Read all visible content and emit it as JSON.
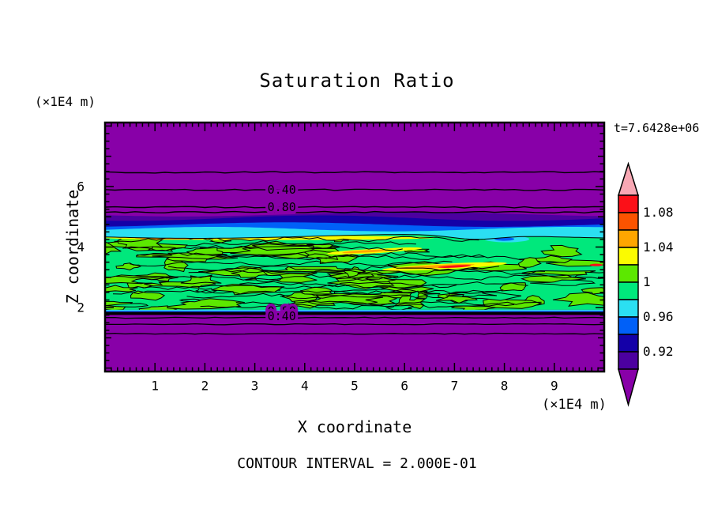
{
  "chart_data": {
    "type": "contour",
    "title": "Saturation Ratio",
    "time_label": "t=7.6428e+06",
    "footer": "CONTOUR INTERVAL = 2.000E-01",
    "contour_interval": 0.2,
    "x_axis": {
      "label": "X coordinate",
      "unit": "(×1E4 m)",
      "range": [
        0,
        10
      ],
      "major_ticks": [
        1,
        2,
        3,
        4,
        5,
        6,
        7,
        8,
        9
      ],
      "minor_per_major": 8
    },
    "z_axis": {
      "label": "Z coordinate",
      "unit": "(×1E4 m)",
      "range": [
        0,
        8
      ],
      "major_ticks": [
        2,
        4,
        6
      ],
      "minor_step": 0.25
    },
    "colorbar": {
      "vmax": 1.1,
      "box_value_step": 0.02,
      "over_color": "#f8a8b4",
      "under_color": "#8800a8",
      "boxes": [
        {
          "color": "#fb1018",
          "range": [
            1.08,
            1.1
          ]
        },
        {
          "color": "#fb5300",
          "range": [
            1.06,
            1.08
          ]
        },
        {
          "color": "#ffa600",
          "range": [
            1.04,
            1.06
          ]
        },
        {
          "color": "#fbfb00",
          "range": [
            1.02,
            1.04
          ]
        },
        {
          "color": "#5ce800",
          "range": [
            1.0,
            1.02
          ]
        },
        {
          "color": "#00e87c",
          "range": [
            0.98,
            1.0
          ]
        },
        {
          "color": "#2bdff2",
          "range": [
            0.96,
            0.98
          ]
        },
        {
          "color": "#0060f8",
          "range": [
            0.94,
            0.96
          ]
        },
        {
          "color": "#1400a8",
          "range": [
            0.92,
            0.94
          ]
        },
        {
          "color": "#4c00a0",
          "range": [
            0.9,
            0.92
          ]
        }
      ],
      "labels": [
        {
          "text": "1.08",
          "value": 1.08
        },
        {
          "text": "1.04",
          "value": 1.04
        },
        {
          "text": "1",
          "value": 1.0
        },
        {
          "text": "0.96",
          "value": 0.96
        },
        {
          "text": "0.92",
          "value": 0.92
        }
      ]
    },
    "field": {
      "background": "#8800a8",
      "green_color": "#00e87c",
      "chartreuse_color": "#5ce800",
      "top_contour_lines": [
        {
          "y": 0.2,
          "label": ""
        },
        {
          "y": 0.27,
          "label": "0.40"
        },
        {
          "y": 0.34,
          "label": "0.80"
        },
        {
          "y": 0.36,
          "label": ""
        }
      ],
      "contour_label_x": 0.354,
      "bottom_labels": [
        {
          "text": "0.80",
          "y": 0.757
        },
        {
          "text": "0.40",
          "y": 0.778
        }
      ],
      "transition_bands": [
        {
          "color": "#4c00a0",
          "base": 0.368,
          "amp": 0.009,
          "freq": 1.1,
          "phase": 0.5
        },
        {
          "color": "#1400a8",
          "base": 0.384,
          "amp": 0.011,
          "freq": 1.3,
          "phase": 1.2
        },
        {
          "color": "#0060f8",
          "base": 0.41,
          "amp": 0.009,
          "freq": 1.2,
          "phase": 2.0
        },
        {
          "color": "#2bdff2",
          "base": 0.428,
          "amp": 0.009,
          "freq": 1.4,
          "phase": 2.8
        }
      ],
      "green_top": {
        "base": 0.457,
        "amp": 0.008,
        "freq": 1.1,
        "phase": 0.3,
        "dip_x": 0.74,
        "dip_amp": 0.018,
        "dip_w": 0.07
      },
      "green_bottom": 0.752,
      "bottom_strips": [
        {
          "color": "#2bdff2",
          "y": 0.752,
          "h": 0.0045
        },
        {
          "color": "#0060f8",
          "y": 0.7565,
          "h": 0.004
        },
        {
          "color": "#000000",
          "y": 0.7605,
          "h": 0.012
        }
      ],
      "bottom_contour_lines": [
        0.784,
        0.81,
        0.848
      ],
      "streaks": [
        {
          "color": "#fbfb00",
          "x": 0.33,
          "y": 0.463,
          "rx": 0.33,
          "ry": 0.009,
          "rot": 0
        },
        {
          "color": "#fbfb00",
          "x": 0.935,
          "y": 0.452,
          "rx": 0.062,
          "ry": 0.008,
          "rot": 0
        },
        {
          "color": "#ffa600",
          "x": 0.13,
          "y": 0.466,
          "rx": 0.07,
          "ry": 0.0045,
          "rot": 0
        },
        {
          "color": "#2bdff2",
          "x": 0.805,
          "y": 0.468,
          "rx": 0.045,
          "ry": 0.013,
          "rot": 0
        },
        {
          "color": "#0060f8",
          "x": 0.8,
          "y": 0.468,
          "rx": 0.02,
          "ry": 0.007,
          "rot": 0
        },
        {
          "color": "#fbfb00",
          "x": 0.595,
          "y": 0.508,
          "rx": 0.04,
          "ry": 0.006,
          "rot": -2
        },
        {
          "color": "#fbfb00",
          "x": 0.53,
          "y": 0.517,
          "rx": 0.085,
          "ry": 0.009,
          "rot": -3
        },
        {
          "color": "#ffa600",
          "x": 0.525,
          "y": 0.517,
          "rx": 0.05,
          "ry": 0.0045,
          "rot": -3
        },
        {
          "color": "#fbfb00",
          "x": 0.68,
          "y": 0.578,
          "rx": 0.125,
          "ry": 0.011,
          "rot": -3
        },
        {
          "color": "#ffa600",
          "x": 0.665,
          "y": 0.578,
          "rx": 0.075,
          "ry": 0.006,
          "rot": -3
        },
        {
          "color": "#fb1018",
          "x": 0.7,
          "y": 0.578,
          "rx": 0.033,
          "ry": 0.0035,
          "rot": -3
        },
        {
          "color": "#fb1018",
          "x": 0.984,
          "y": 0.572,
          "rx": 0.013,
          "ry": 0.005,
          "rot": 0
        }
      ],
      "texture": {
        "seed": 11,
        "chartreuse_blobs": 70,
        "green_blobs": 12,
        "squiggles": 15
      }
    }
  }
}
